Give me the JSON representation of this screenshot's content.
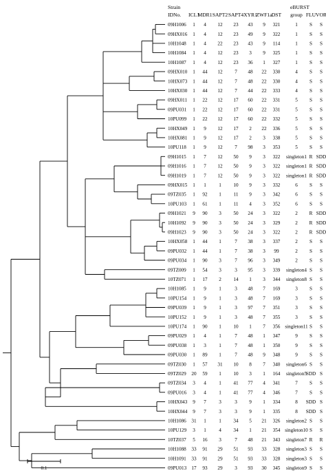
{
  "headers": {
    "strain": "Strain",
    "id": "IDNo.",
    "icl1": "ICL1",
    "mdr1": "MDR1",
    "sapt2": "SAPT2",
    "sapt4": "SAPT4",
    "xyr1": "XYR1",
    "zwf1a": "ZWF1a",
    "dst": "DST",
    "ebusrt": "eBURST",
    "group": "group",
    "flu": "FLU",
    "vor": "VOR"
  },
  "scale_bar_label": "0.1",
  "rows": [
    [
      "09H1006",
      "1",
      "4",
      "12",
      "23",
      "43",
      "9",
      "321",
      "1",
      "S",
      "S"
    ],
    [
      "09HX016",
      "1",
      "4",
      "12",
      "23",
      "49",
      "9",
      "322",
      "1",
      "S",
      "S"
    ],
    [
      "10H1048",
      "1",
      "4",
      "22",
      "23",
      "43",
      "9",
      "114",
      "1",
      "S",
      "S"
    ],
    [
      "10H1084",
      "1",
      "4",
      "12",
      "23",
      "3",
      "9",
      "325",
      "1",
      "S",
      "S"
    ],
    [
      "10H1087",
      "1",
      "4",
      "12",
      "23",
      "36",
      "1",
      "327",
      "1",
      "S",
      "S"
    ],
    [
      "09HX010",
      "1",
      "44",
      "12",
      "7",
      "48",
      "22",
      "330",
      "4",
      "S",
      "S"
    ],
    [
      "10HX073",
      "1",
      "44",
      "12",
      "7",
      "48",
      "22",
      "330",
      "4",
      "S",
      "S"
    ],
    [
      "10HX030",
      "1",
      "44",
      "12",
      "7",
      "44",
      "22",
      "333",
      "4",
      "S",
      "S"
    ],
    [
      "09HX011",
      "1",
      "22",
      "12",
      "17",
      "60",
      "22",
      "331",
      "5",
      "S",
      "S"
    ],
    [
      "09PU031",
      "1",
      "22",
      "12",
      "17",
      "60",
      "22",
      "331",
      "5",
      "S",
      "S"
    ],
    [
      "10PU099",
      "1",
      "22",
      "12",
      "17",
      "60",
      "22",
      "332",
      "5",
      "S",
      "S"
    ],
    [
      "10HX049",
      "1",
      "9",
      "12",
      "17",
      "2",
      "22",
      "336",
      "5",
      "S",
      "S"
    ],
    [
      "10HX081",
      "1",
      "9",
      "12",
      "17",
      "2",
      "3",
      "338",
      "5",
      "S",
      "S"
    ],
    [
      "10PU118",
      "1",
      "9",
      "12",
      "7",
      "98",
      "3",
      "353",
      "5",
      "S",
      "S"
    ],
    [
      "09H1015",
      "1",
      "7",
      "12",
      "50",
      "9",
      "3",
      "322",
      "singleton1",
      "R",
      "SDD"
    ],
    [
      "09H1016",
      "1",
      "7",
      "12",
      "50",
      "9",
      "3",
      "322",
      "singleton1",
      "R",
      "SDD"
    ],
    [
      "09H1019",
      "1",
      "7",
      "12",
      "50",
      "9",
      "3",
      "322",
      "singleton1",
      "R",
      "SDD"
    ],
    [
      "09HX015",
      "1",
      "1",
      "1",
      "10",
      "9",
      "3",
      "332",
      "6",
      "S",
      "S"
    ],
    [
      "09TZ035",
      "1",
      "92",
      "1",
      "11",
      "9",
      "3",
      "342",
      "6",
      "S",
      "S"
    ],
    [
      "10PU103",
      "1",
      "61",
      "1",
      "11",
      "4",
      "3",
      "352",
      "6",
      "S",
      "S"
    ],
    [
      "09H1021",
      "9",
      "90",
      "3",
      "50",
      "24",
      "3",
      "322",
      "2",
      "R",
      "SDD"
    ],
    [
      "10H1092",
      "9",
      "90",
      "3",
      "50",
      "24",
      "3",
      "329",
      "2",
      "R",
      "SDD"
    ],
    [
      "09H1023",
      "9",
      "90",
      "3",
      "50",
      "24",
      "3",
      "322",
      "2",
      "R",
      "SDD"
    ],
    [
      "10HX058",
      "1",
      "44",
      "1",
      "7",
      "38",
      "3",
      "337",
      "2",
      "S",
      "S"
    ],
    [
      "09PU032",
      "1",
      "44",
      "1",
      "7",
      "38",
      "3",
      "99",
      "2",
      "S",
      "S"
    ],
    [
      "09PU034",
      "1",
      "90",
      "3",
      "7",
      "96",
      "3",
      "349",
      "2",
      "S",
      "S"
    ],
    [
      "09TZ009",
      "1",
      "54",
      "3",
      "3",
      "95",
      "3",
      "339",
      "singleton4",
      "S",
      "S"
    ],
    [
      "10TZ071",
      "1",
      "17",
      "2",
      "14",
      "1",
      "3",
      "344",
      "singleton8",
      "S",
      "S"
    ],
    [
      "10H1085",
      "1",
      "9",
      "1",
      "3",
      "48",
      "7",
      "169",
      "3",
      "S",
      "S"
    ],
    [
      "10PU154",
      "1",
      "9",
      "1",
      "3",
      "48",
      "7",
      "169",
      "3",
      "S",
      "S"
    ],
    [
      "09PU039",
      "1",
      "9",
      "1",
      "3",
      "97",
      "7",
      "351",
      "3",
      "S",
      "S"
    ],
    [
      "10PU152",
      "1",
      "9",
      "1",
      "3",
      "48",
      "7",
      "355",
      "3",
      "S",
      "S"
    ],
    [
      "10PU174",
      "1",
      "90",
      "1",
      "10",
      "1",
      "7",
      "356",
      "singleton11",
      "S",
      "S"
    ],
    [
      "09PU029",
      "1",
      "4",
      "1",
      "7",
      "48",
      "1",
      "347",
      "9",
      "S",
      "S"
    ],
    [
      "09PU038",
      "1",
      "3",
      "1",
      "7",
      "48",
      "1",
      "350",
      "9",
      "S",
      "S"
    ],
    [
      "09PU030",
      "1",
      "89",
      "1",
      "7",
      "48",
      "9",
      "348",
      "9",
      "S",
      "S"
    ],
    [
      "09TZ030",
      "1",
      "57",
      "31",
      "10",
      "8",
      "7",
      "340",
      "singleton6",
      "S",
      "S"
    ],
    [
      "09TZ029",
      "20",
      "59",
      "1",
      "10",
      "3",
      "1",
      "164",
      "singleton5",
      "SDD",
      "S"
    ],
    [
      "09TZ034",
      "3",
      "4",
      "1",
      "41",
      "77",
      "4",
      "341",
      "7",
      "S",
      "S"
    ],
    [
      "09PU016",
      "3",
      "4",
      "1",
      "41",
      "77",
      "4",
      "346",
      "7",
      "S",
      "S"
    ],
    [
      "10HX043",
      "9",
      "7",
      "3",
      "3",
      "9",
      "1",
      "334",
      "8",
      "SDD",
      "S"
    ],
    [
      "10HX044",
      "9",
      "7",
      "3",
      "3",
      "9",
      "1",
      "335",
      "8",
      "SDD",
      "S"
    ],
    [
      "10H1086",
      "31",
      "1",
      "1",
      "34",
      "5",
      "21",
      "326",
      "singleton2",
      "S",
      "S"
    ],
    [
      "10PU129",
      "3",
      "1",
      "4",
      "34",
      "1",
      "21",
      "354",
      "singleton10",
      "S",
      "S"
    ],
    [
      "10TZ037",
      "5",
      "16",
      "3",
      "7",
      "48",
      "21",
      "343",
      "singleton7",
      "R",
      "R"
    ],
    [
      "10H1088",
      "33",
      "91",
      "29",
      "51",
      "93",
      "33",
      "328",
      "singleton3",
      "S",
      "S"
    ],
    [
      "10H1091",
      "33",
      "91",
      "29",
      "51",
      "93",
      "33",
      "328",
      "singleton3",
      "S",
      "S"
    ],
    [
      "09PU013",
      "17",
      "93",
      "29",
      "3",
      "93",
      "30",
      "345",
      "singleton9",
      "S",
      "S"
    ]
  ]
}
